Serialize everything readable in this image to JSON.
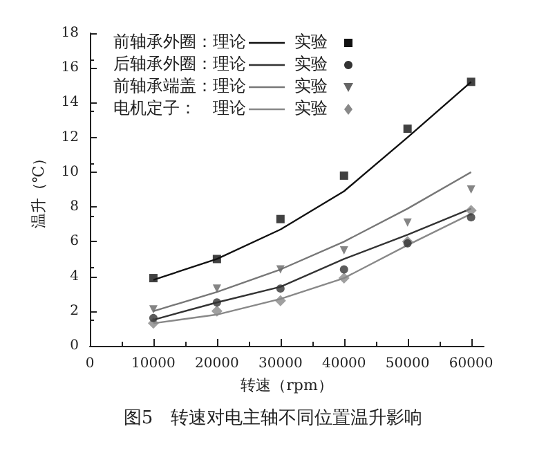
{
  "chart_data": {
    "type": "line",
    "title": "图5　转速对电主轴不同位置温升影响",
    "xlabel": "转速（rpm）",
    "ylabel": "温升（℃）",
    "x": [
      10000,
      20000,
      30000,
      40000,
      50000,
      60000
    ],
    "xlim": [
      0,
      62000
    ],
    "xticks": [
      0,
      10000,
      20000,
      30000,
      40000,
      50000,
      60000
    ],
    "ylim": [
      0,
      18
    ],
    "yticks": [
      0,
      2,
      4,
      6,
      8,
      10,
      12,
      14,
      16,
      18
    ],
    "grid": false,
    "legend": "top left",
    "series": [
      {
        "name": "前轴承外圈：理论",
        "color": "#111111",
        "marker": "none",
        "values": [
          3.8,
          5.0,
          6.7,
          8.9,
          12.0,
          15.2
        ]
      },
      {
        "name": "实验",
        "type": "scatter",
        "color": "#111111",
        "marker": "square",
        "values": [
          3.9,
          5.0,
          7.3,
          9.8,
          12.5,
          15.2
        ]
      },
      {
        "name": "后轴承外圈：理论",
        "color": "#333333",
        "marker": "none",
        "values": [
          1.5,
          2.5,
          3.4,
          5.0,
          6.4,
          7.9
        ]
      },
      {
        "name": "实验",
        "type": "scatter",
        "color": "#333333",
        "marker": "circle",
        "values": [
          1.6,
          2.5,
          3.3,
          4.4,
          5.9,
          7.4
        ]
      },
      {
        "name": "前轴承端盖：理论",
        "color": "#777777",
        "marker": "none",
        "values": [
          2.0,
          3.1,
          4.4,
          6.0,
          7.9,
          10.0
        ]
      },
      {
        "name": "实验",
        "type": "scatter",
        "color": "#666666",
        "marker": "triangle",
        "values": [
          2.1,
          3.3,
          4.4,
          5.5,
          7.1,
          9.0
        ]
      },
      {
        "name": "电机定子：　理论",
        "color": "#888888",
        "marker": "none",
        "values": [
          1.3,
          1.8,
          2.7,
          3.9,
          5.8,
          7.6
        ]
      },
      {
        "name": "实验",
        "type": "scatter",
        "color": "#888888",
        "marker": "diamond",
        "values": [
          1.3,
          2.0,
          2.6,
          3.9,
          6.0,
          7.8
        ]
      }
    ]
  }
}
